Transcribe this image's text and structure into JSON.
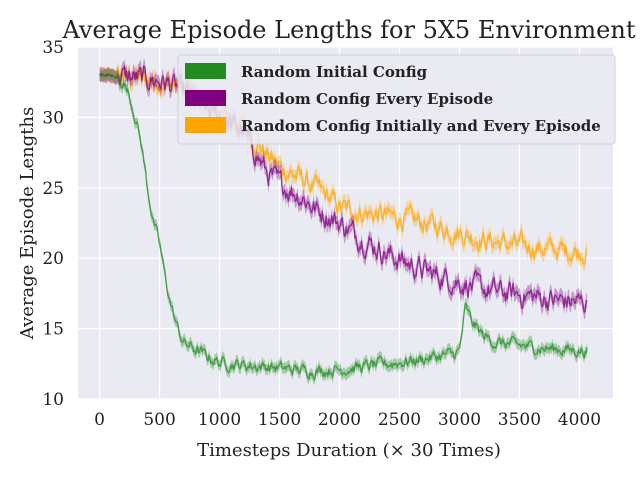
{
  "chart_data": {
    "type": "line",
    "title": "Average Episode Lengths for 5X5 Environment",
    "xlabel": "Timesteps Duration (× 30 Times)",
    "ylabel": "Average Episode Lengths",
    "xlim": [
      -180,
      4280
    ],
    "ylim": [
      10,
      35
    ],
    "xticks": [
      0,
      500,
      1000,
      1500,
      2000,
      2500,
      3000,
      3500,
      4000
    ],
    "yticks": [
      10,
      15,
      20,
      25,
      30,
      35
    ],
    "grid": true,
    "background": "#eaeaf2",
    "legend_position": "top-right",
    "series": [
      {
        "name": "Random Initial Config",
        "color": "#228b22",
        "noise": 0.35,
        "points": [
          [
            0,
            33.0
          ],
          [
            100,
            33.0
          ],
          [
            200,
            32.5
          ],
          [
            250,
            31.5
          ],
          [
            300,
            30.0
          ],
          [
            350,
            28.0
          ],
          [
            400,
            25.0
          ],
          [
            450,
            22.5
          ],
          [
            500,
            21.0
          ],
          [
            550,
            18.5
          ],
          [
            600,
            16.5
          ],
          [
            650,
            15.0
          ],
          [
            700,
            14.0
          ],
          [
            800,
            13.5
          ],
          [
            900,
            13.0
          ],
          [
            1000,
            12.6
          ],
          [
            1200,
            12.4
          ],
          [
            1400,
            12.3
          ],
          [
            1600,
            12.1
          ],
          [
            1800,
            12.0
          ],
          [
            2000,
            12.1
          ],
          [
            2200,
            12.3
          ],
          [
            2400,
            12.5
          ],
          [
            2600,
            12.7
          ],
          [
            2800,
            13.0
          ],
          [
            2950,
            13.2
          ],
          [
            3000,
            13.4
          ],
          [
            3050,
            16.5
          ],
          [
            3100,
            15.5
          ],
          [
            3200,
            14.5
          ],
          [
            3300,
            14.0
          ],
          [
            3500,
            13.8
          ],
          [
            3700,
            13.6
          ],
          [
            3900,
            13.5
          ],
          [
            4070,
            13.4
          ]
        ]
      },
      {
        "name": "Random Config Every Episode",
        "color": "#800080",
        "noise": 0.65,
        "points": [
          [
            0,
            33.0
          ],
          [
            200,
            32.9
          ],
          [
            400,
            32.7
          ],
          [
            500,
            32.6
          ],
          [
            600,
            32.3
          ],
          [
            700,
            31.8
          ],
          [
            800,
            31.2
          ],
          [
            900,
            30.5
          ],
          [
            1000,
            30.0
          ],
          [
            1100,
            29.5
          ],
          [
            1200,
            29.0
          ],
          [
            1300,
            27.5
          ],
          [
            1400,
            26.0
          ],
          [
            1500,
            25.3
          ],
          [
            1600,
            24.8
          ],
          [
            1700,
            24.3
          ],
          [
            1800,
            23.5
          ],
          [
            1900,
            23.0
          ],
          [
            2000,
            22.5
          ],
          [
            2200,
            21.3
          ],
          [
            2400,
            20.3
          ],
          [
            2600,
            19.5
          ],
          [
            2800,
            18.8
          ],
          [
            3000,
            18.3
          ],
          [
            3200,
            17.8
          ],
          [
            3400,
            17.5
          ],
          [
            3600,
            17.3
          ],
          [
            3800,
            17.0
          ],
          [
            3950,
            16.9
          ],
          [
            4070,
            16.8
          ]
        ]
      },
      {
        "name": "Random Config Initially and Every Episode",
        "color": "#ffa500",
        "noise": 0.6,
        "points": [
          [
            0,
            33.0
          ],
          [
            200,
            32.9
          ],
          [
            400,
            32.7
          ],
          [
            500,
            32.6
          ],
          [
            600,
            32.4
          ],
          [
            700,
            32.0
          ],
          [
            800,
            31.5
          ],
          [
            900,
            30.8
          ],
          [
            1000,
            30.3
          ],
          [
            1100,
            29.8
          ],
          [
            1200,
            29.3
          ],
          [
            1300,
            28.3
          ],
          [
            1400,
            27.3
          ],
          [
            1500,
            26.5
          ],
          [
            1600,
            26.0
          ],
          [
            1700,
            25.6
          ],
          [
            1800,
            25.0
          ],
          [
            1900,
            24.4
          ],
          [
            2000,
            23.6
          ],
          [
            2200,
            23.2
          ],
          [
            2400,
            23.0
          ],
          [
            2600,
            22.7
          ],
          [
            2800,
            22.3
          ],
          [
            3000,
            21.8
          ],
          [
            3200,
            21.3
          ],
          [
            3400,
            21.0
          ],
          [
            3600,
            20.8
          ],
          [
            3800,
            20.6
          ],
          [
            3950,
            20.5
          ],
          [
            4070,
            20.5
          ]
        ]
      }
    ]
  }
}
